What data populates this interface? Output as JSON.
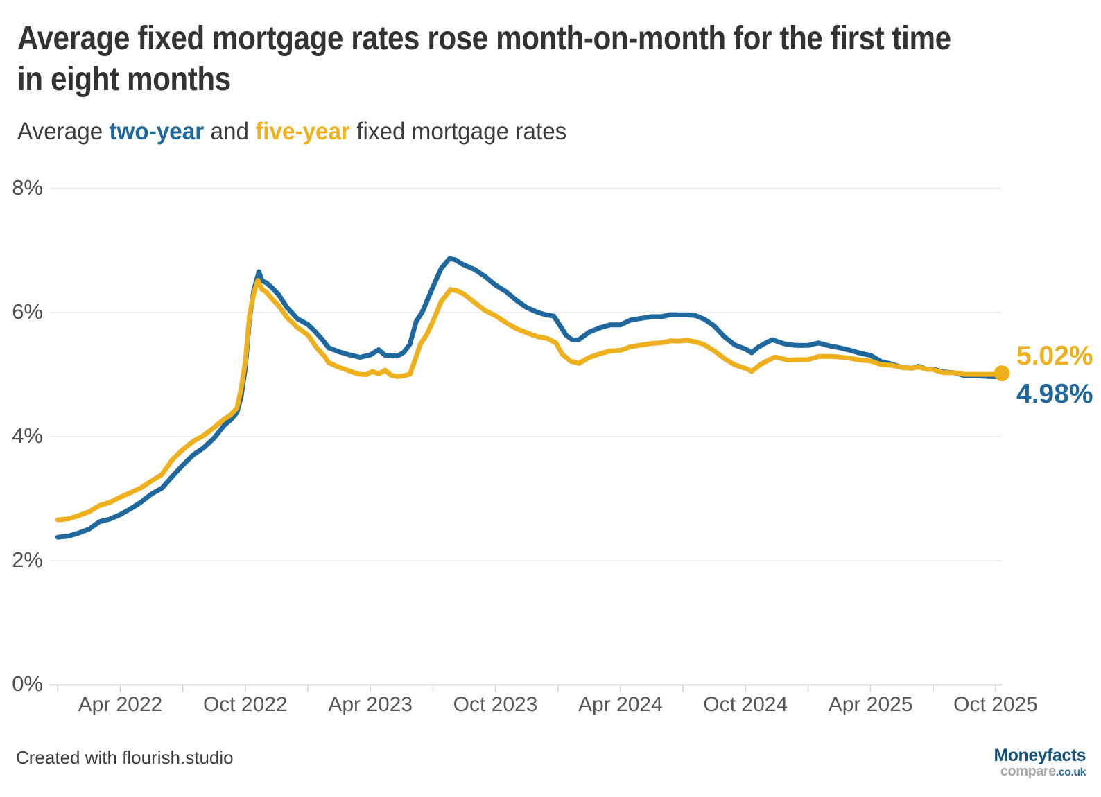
{
  "header": {
    "title": "Average fixed mortgage rates rose month-on-month for the first time in eight months",
    "title_lines": [
      "Average fixed mortgage rates rose month-on-month for the first time",
      "in eight months"
    ],
    "subtitle": {
      "prefix": "Average ",
      "two_year_label": "two-year",
      "middle": " and ",
      "five_year_label": "five-year",
      "suffix": " fixed mortgage rates"
    }
  },
  "colors": {
    "two_year": "#1F689E",
    "five_year": "#EFB01E",
    "title_text": "#333333",
    "axis_text": "#4D4D4D",
    "gridline": "#E9E9E9",
    "axis_line": "#CDCDCD",
    "background": "#FFFFFF",
    "logo_dark_blue": "#15537F",
    "logo_gray": "#A6A8AB",
    "logo_blue": "#2F6EA3"
  },
  "chart_data": {
    "type": "line",
    "title": "Average fixed mortgage rates rose month-on-month for the first time in eight months",
    "subtitle": "Average two-year and five-year fixed mortgage rates",
    "x_unit": "months since Jan 2022",
    "xlim": [
      0,
      45.3
    ],
    "ylim": [
      0,
      8
    ],
    "grid": "horizontal",
    "legend_position": "inline-subtitle",
    "y_ticks": [
      {
        "label": "0%",
        "value": 0
      },
      {
        "label": "2%",
        "value": 2
      },
      {
        "label": "4%",
        "value": 4
      },
      {
        "label": "6%",
        "value": 6
      },
      {
        "label": "8%",
        "value": 8
      }
    ],
    "x_tick_labels": [
      {
        "label": "Apr 2022",
        "m": 3
      },
      {
        "label": "Oct 2022",
        "m": 9
      },
      {
        "label": "Apr 2023",
        "m": 15
      },
      {
        "label": "Oct 2023",
        "m": 21
      },
      {
        "label": "Apr 2024",
        "m": 27
      },
      {
        "label": "Oct 2024",
        "m": 33
      },
      {
        "label": "Apr 2025",
        "m": 39
      },
      {
        "label": "Oct 2025",
        "m": 45
      }
    ],
    "minor_tick_every_months": 3,
    "series": [
      {
        "name": "two-year",
        "color_key": "two_year",
        "end_value_label": "4.98%",
        "values": [
          [
            0,
            2.38
          ],
          [
            0.5,
            2.4
          ],
          [
            1,
            2.44
          ],
          [
            1.5,
            2.52
          ],
          [
            2,
            2.62
          ],
          [
            2.5,
            2.68
          ],
          [
            3,
            2.74
          ],
          [
            3.5,
            2.84
          ],
          [
            4,
            2.95
          ],
          [
            4.5,
            3.07
          ],
          [
            5,
            3.18
          ],
          [
            5.5,
            3.35
          ],
          [
            6,
            3.55
          ],
          [
            6.5,
            3.7
          ],
          [
            7,
            3.82
          ],
          [
            7.5,
            3.98
          ],
          [
            8,
            4.18
          ],
          [
            8.3,
            4.28
          ],
          [
            8.6,
            4.38
          ],
          [
            8.8,
            4.65
          ],
          [
            9,
            5.1
          ],
          [
            9.2,
            5.9
          ],
          [
            9.4,
            6.35
          ],
          [
            9.65,
            6.65
          ],
          [
            9.8,
            6.52
          ],
          [
            10,
            6.47
          ],
          [
            10.3,
            6.4
          ],
          [
            10.6,
            6.28
          ],
          [
            11,
            6.08
          ],
          [
            11.5,
            5.9
          ],
          [
            12,
            5.8
          ],
          [
            12.3,
            5.72
          ],
          [
            12.7,
            5.55
          ],
          [
            13,
            5.44
          ],
          [
            13.5,
            5.36
          ],
          [
            14,
            5.32
          ],
          [
            14.5,
            5.28
          ],
          [
            15,
            5.31
          ],
          [
            15.4,
            5.41
          ],
          [
            15.7,
            5.3
          ],
          [
            16,
            5.32
          ],
          [
            16.3,
            5.29
          ],
          [
            16.6,
            5.36
          ],
          [
            16.9,
            5.49
          ],
          [
            17.2,
            5.85
          ],
          [
            17.5,
            6.02
          ],
          [
            18,
            6.4
          ],
          [
            18.4,
            6.72
          ],
          [
            18.8,
            6.86
          ],
          [
            19.1,
            6.85
          ],
          [
            19.4,
            6.78
          ],
          [
            19.7,
            6.73
          ],
          [
            20,
            6.7
          ],
          [
            20.5,
            6.57
          ],
          [
            21,
            6.45
          ],
          [
            21.5,
            6.33
          ],
          [
            22,
            6.2
          ],
          [
            22.5,
            6.08
          ],
          [
            23,
            6.0
          ],
          [
            23.4,
            5.97
          ],
          [
            23.8,
            5.93
          ],
          [
            24.1,
            5.8
          ],
          [
            24.4,
            5.62
          ],
          [
            24.7,
            5.56
          ],
          [
            25,
            5.56
          ],
          [
            25.5,
            5.68
          ],
          [
            26,
            5.76
          ],
          [
            26.5,
            5.79
          ],
          [
            27,
            5.81
          ],
          [
            27.5,
            5.87
          ],
          [
            28,
            5.91
          ],
          [
            28.5,
            5.93
          ],
          [
            29,
            5.93
          ],
          [
            29.4,
            5.97
          ],
          [
            29.8,
            5.95
          ],
          [
            30.2,
            5.97
          ],
          [
            30.6,
            5.94
          ],
          [
            31,
            5.9
          ],
          [
            31.5,
            5.78
          ],
          [
            32,
            5.6
          ],
          [
            32.5,
            5.48
          ],
          [
            33,
            5.4
          ],
          [
            33.3,
            5.36
          ],
          [
            33.6,
            5.43
          ],
          [
            34,
            5.52
          ],
          [
            34.3,
            5.56
          ],
          [
            34.7,
            5.51
          ],
          [
            35,
            5.49
          ],
          [
            35.5,
            5.46
          ],
          [
            36,
            5.48
          ],
          [
            36.5,
            5.5
          ],
          [
            37,
            5.47
          ],
          [
            37.5,
            5.43
          ],
          [
            38,
            5.39
          ],
          [
            38.5,
            5.35
          ],
          [
            39,
            5.3
          ],
          [
            39.5,
            5.22
          ],
          [
            40,
            5.16
          ],
          [
            40.5,
            5.12
          ],
          [
            41,
            5.1
          ],
          [
            41.3,
            5.13
          ],
          [
            41.7,
            5.09
          ],
          [
            42,
            5.08
          ],
          [
            42.5,
            5.05
          ],
          [
            43,
            5.02
          ],
          [
            43.5,
            4.99
          ],
          [
            44,
            4.98
          ],
          [
            44.5,
            4.97
          ],
          [
            45,
            4.97
          ],
          [
            45.3,
            4.98
          ]
        ]
      },
      {
        "name": "five-year",
        "color_key": "five_year",
        "end_value_label": "5.02%",
        "end_dot": true,
        "values": [
          [
            0,
            2.66
          ],
          [
            0.5,
            2.68
          ],
          [
            1,
            2.72
          ],
          [
            1.5,
            2.8
          ],
          [
            2,
            2.88
          ],
          [
            2.5,
            2.95
          ],
          [
            3,
            3.02
          ],
          [
            3.5,
            3.1
          ],
          [
            4,
            3.18
          ],
          [
            4.5,
            3.28
          ],
          [
            5,
            3.4
          ],
          [
            5.5,
            3.62
          ],
          [
            6,
            3.8
          ],
          [
            6.5,
            3.92
          ],
          [
            7,
            4.02
          ],
          [
            7.5,
            4.15
          ],
          [
            8,
            4.28
          ],
          [
            8.3,
            4.36
          ],
          [
            8.6,
            4.45
          ],
          [
            8.8,
            4.78
          ],
          [
            9,
            5.2
          ],
          [
            9.2,
            5.95
          ],
          [
            9.4,
            6.3
          ],
          [
            9.6,
            6.51
          ],
          [
            9.8,
            6.38
          ],
          [
            10,
            6.32
          ],
          [
            10.3,
            6.22
          ],
          [
            10.6,
            6.1
          ],
          [
            11,
            5.92
          ],
          [
            11.5,
            5.76
          ],
          [
            12,
            5.63
          ],
          [
            12.4,
            5.45
          ],
          [
            12.8,
            5.28
          ],
          [
            13,
            5.2
          ],
          [
            13.5,
            5.11
          ],
          [
            14,
            5.06
          ],
          [
            14.4,
            5.01
          ],
          [
            14.8,
            4.99
          ],
          [
            15.1,
            5.06
          ],
          [
            15.4,
            5.0
          ],
          [
            15.7,
            5.08
          ],
          [
            16,
            4.98
          ],
          [
            16.3,
            4.97
          ],
          [
            16.6,
            4.98
          ],
          [
            16.9,
            5.0
          ],
          [
            17.1,
            5.2
          ],
          [
            17.4,
            5.48
          ],
          [
            17.7,
            5.65
          ],
          [
            18,
            5.85
          ],
          [
            18.4,
            6.18
          ],
          [
            18.85,
            6.37
          ],
          [
            19.2,
            6.34
          ],
          [
            19.5,
            6.3
          ],
          [
            20,
            6.15
          ],
          [
            20.5,
            6.04
          ],
          [
            21,
            5.94
          ],
          [
            21.5,
            5.84
          ],
          [
            22,
            5.74
          ],
          [
            22.5,
            5.67
          ],
          [
            23,
            5.62
          ],
          [
            23.5,
            5.57
          ],
          [
            23.9,
            5.52
          ],
          [
            24.2,
            5.32
          ],
          [
            24.6,
            5.22
          ],
          [
            25,
            5.18
          ],
          [
            25.5,
            5.27
          ],
          [
            26,
            5.34
          ],
          [
            26.5,
            5.37
          ],
          [
            27,
            5.4
          ],
          [
            27.5,
            5.44
          ],
          [
            28,
            5.48
          ],
          [
            28.5,
            5.5
          ],
          [
            29,
            5.51
          ],
          [
            29.4,
            5.55
          ],
          [
            29.8,
            5.53
          ],
          [
            30.2,
            5.56
          ],
          [
            30.6,
            5.52
          ],
          [
            31,
            5.49
          ],
          [
            31.5,
            5.38
          ],
          [
            32,
            5.25
          ],
          [
            32.5,
            5.16
          ],
          [
            33,
            5.09
          ],
          [
            33.3,
            5.06
          ],
          [
            33.7,
            5.15
          ],
          [
            34,
            5.22
          ],
          [
            34.4,
            5.28
          ],
          [
            34.8,
            5.25
          ],
          [
            35,
            5.24
          ],
          [
            35.5,
            5.23
          ],
          [
            36,
            5.25
          ],
          [
            36.5,
            5.28
          ],
          [
            37,
            5.3
          ],
          [
            37.5,
            5.28
          ],
          [
            38,
            5.26
          ],
          [
            38.5,
            5.24
          ],
          [
            39,
            5.21
          ],
          [
            39.5,
            5.17
          ],
          [
            40,
            5.14
          ],
          [
            40.5,
            5.12
          ],
          [
            41,
            5.1
          ],
          [
            41.3,
            5.12
          ],
          [
            41.7,
            5.09
          ],
          [
            42,
            5.07
          ],
          [
            42.5,
            5.04
          ],
          [
            43,
            5.02
          ],
          [
            43.5,
            5.01
          ],
          [
            44,
            5.0
          ],
          [
            44.5,
            5.0
          ],
          [
            45,
            5.01
          ],
          [
            45.3,
            5.02
          ]
        ]
      }
    ],
    "end_labels": [
      {
        "series": "five-year",
        "text": "5.02%"
      },
      {
        "series": "two-year",
        "text": "4.98%"
      }
    ]
  },
  "footer": {
    "credit": "Created with flourish.studio",
    "logo": {
      "line1": "Moneyfacts",
      "line2_part1": "compare",
      "line2_part2": ".co.uk"
    }
  }
}
